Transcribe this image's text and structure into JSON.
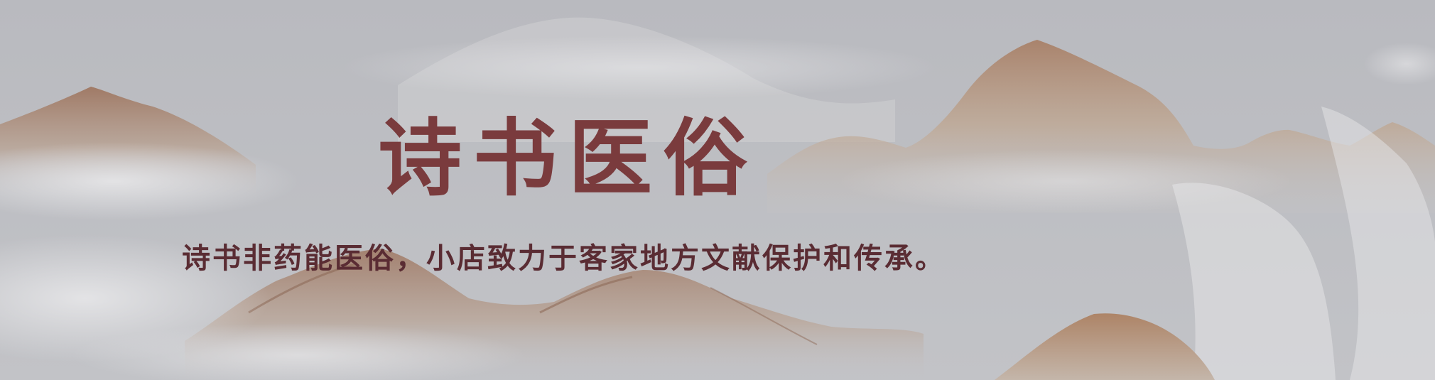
{
  "banner": {
    "title": "诗书医俗",
    "subtitle": "诗书非药能医俗，小店致力于客家地方文献保护和传承。"
  },
  "colors": {
    "background": "#bbbcc0",
    "mountain": "#a8826a",
    "mist": "#e4e4e6",
    "title": "#7a3b3d",
    "subtitle": "#5a2c33"
  }
}
